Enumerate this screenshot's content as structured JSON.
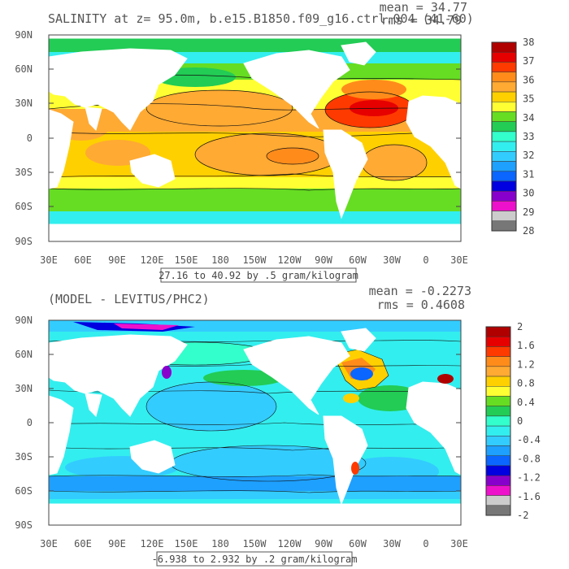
{
  "panels": [
    {
      "id": "salinity",
      "title": "SALINITY at z=  95.0m, b.e15.B1850.f09_g16.ctrl.004 (41-60)",
      "mean_label": "mean = 34.77",
      "rms_label": "rms = 34.79",
      "range_label": "27.16 to 40.92 by .5 gram/kilogram",
      "lat_ticks": [
        "90N",
        "60N",
        "30N",
        "0",
        "30S",
        "60S",
        "90S"
      ],
      "lon_ticks": [
        "30E",
        "60E",
        "90E",
        "120E",
        "150E",
        "180",
        "150W",
        "120W",
        "90W",
        "60W",
        "30W",
        "0",
        "30E"
      ],
      "colorbar": {
        "labels": [
          "38",
          "37",
          "36",
          "35",
          "34",
          "33",
          "32",
          "31",
          "30",
          "29",
          "28"
        ],
        "colors": [
          "#b00000",
          "#e60000",
          "#ff3a00",
          "#ff8c1a",
          "#ffaa33",
          "#ffd000",
          "#ffff33",
          "#66dd22",
          "#22cc55",
          "#33ffcc",
          "#33eeee",
          "#33ccff",
          "#1ea0ff",
          "#0a66ff",
          "#0000e0",
          "#8800cc",
          "#ee11cc",
          "#cccccc",
          "#777777"
        ]
      }
    },
    {
      "id": "difference",
      "title": "(MODEL - LEVITUS/PHC2)",
      "mean_label": "mean = -0.2273",
      "rms_label": "rms = 0.4608",
      "range_label": "-6.938 to 2.932 by .2 gram/kilogram",
      "lat_ticks": [
        "90N",
        "60N",
        "30N",
        "0",
        "30S",
        "60S",
        "90S"
      ],
      "lon_ticks": [
        "30E",
        "60E",
        "90E",
        "120E",
        "150E",
        "180",
        "150W",
        "120W",
        "90W",
        "60W",
        "30W",
        "0",
        "30E"
      ],
      "colorbar": {
        "labels": [
          "2",
          "1.6",
          "1.2",
          "0.8",
          "0.4",
          "0",
          "-0.4",
          "-0.8",
          "-1.2",
          "-1.6",
          "-2"
        ],
        "colors": [
          "#b00000",
          "#e60000",
          "#ff3a00",
          "#ff8c1a",
          "#ffaa33",
          "#ffd000",
          "#ffff33",
          "#66dd22",
          "#22cc55",
          "#33ffcc",
          "#33eeee",
          "#33ccff",
          "#1ea0ff",
          "#0a66ff",
          "#0000e0",
          "#8800cc",
          "#ee11cc",
          "#cccccc",
          "#777777"
        ]
      }
    }
  ]
}
